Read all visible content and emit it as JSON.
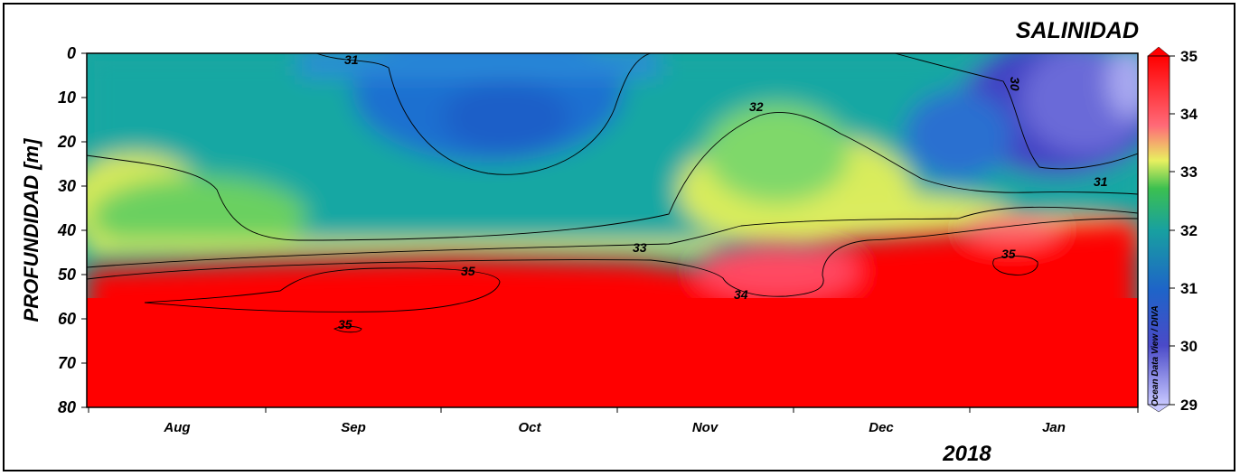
{
  "chart_data": {
    "type": "heatmap",
    "title": "SALINIDAD",
    "ylabel": "PROFUNDIDAD [m]",
    "xlabel": "",
    "year_label": "2018",
    "credit": "Ocean Data View / DIVA",
    "y_ticks": [
      "0",
      "10",
      "20",
      "30",
      "40",
      "50",
      "60",
      "70",
      "80"
    ],
    "ylim": [
      80,
      0
    ],
    "x_categories": [
      "Aug",
      "Sep",
      "Oct",
      "Nov",
      "Dec",
      "Jan"
    ],
    "colorbar": {
      "ticks": [
        "35",
        "34",
        "33",
        "32",
        "31",
        "30",
        "29"
      ],
      "range": [
        29,
        35
      ],
      "colors": [
        "#a6a6ff",
        "#4040c8",
        "#1a62c8",
        "#17a0a0",
        "#3cc050",
        "#e6ee60",
        "#ff5060",
        "#ff0000"
      ]
    },
    "contour_labels": [
      {
        "text": "31",
        "month": "Aug",
        "depth": 1
      },
      {
        "text": "32",
        "month": "Nov",
        "depth": 12
      },
      {
        "text": "30",
        "month": "Jan",
        "depth": 7
      },
      {
        "text": "31",
        "month": "Jan",
        "depth": 29
      },
      {
        "text": "33",
        "month": "Nov",
        "depth": 44
      },
      {
        "text": "35",
        "month": "Sep",
        "depth": 49
      },
      {
        "text": "35",
        "month": "Jan",
        "depth": 46
      },
      {
        "text": "34",
        "month": "Nov",
        "depth": 55
      },
      {
        "text": "35",
        "month": "Sep",
        "depth": 62
      }
    ]
  }
}
